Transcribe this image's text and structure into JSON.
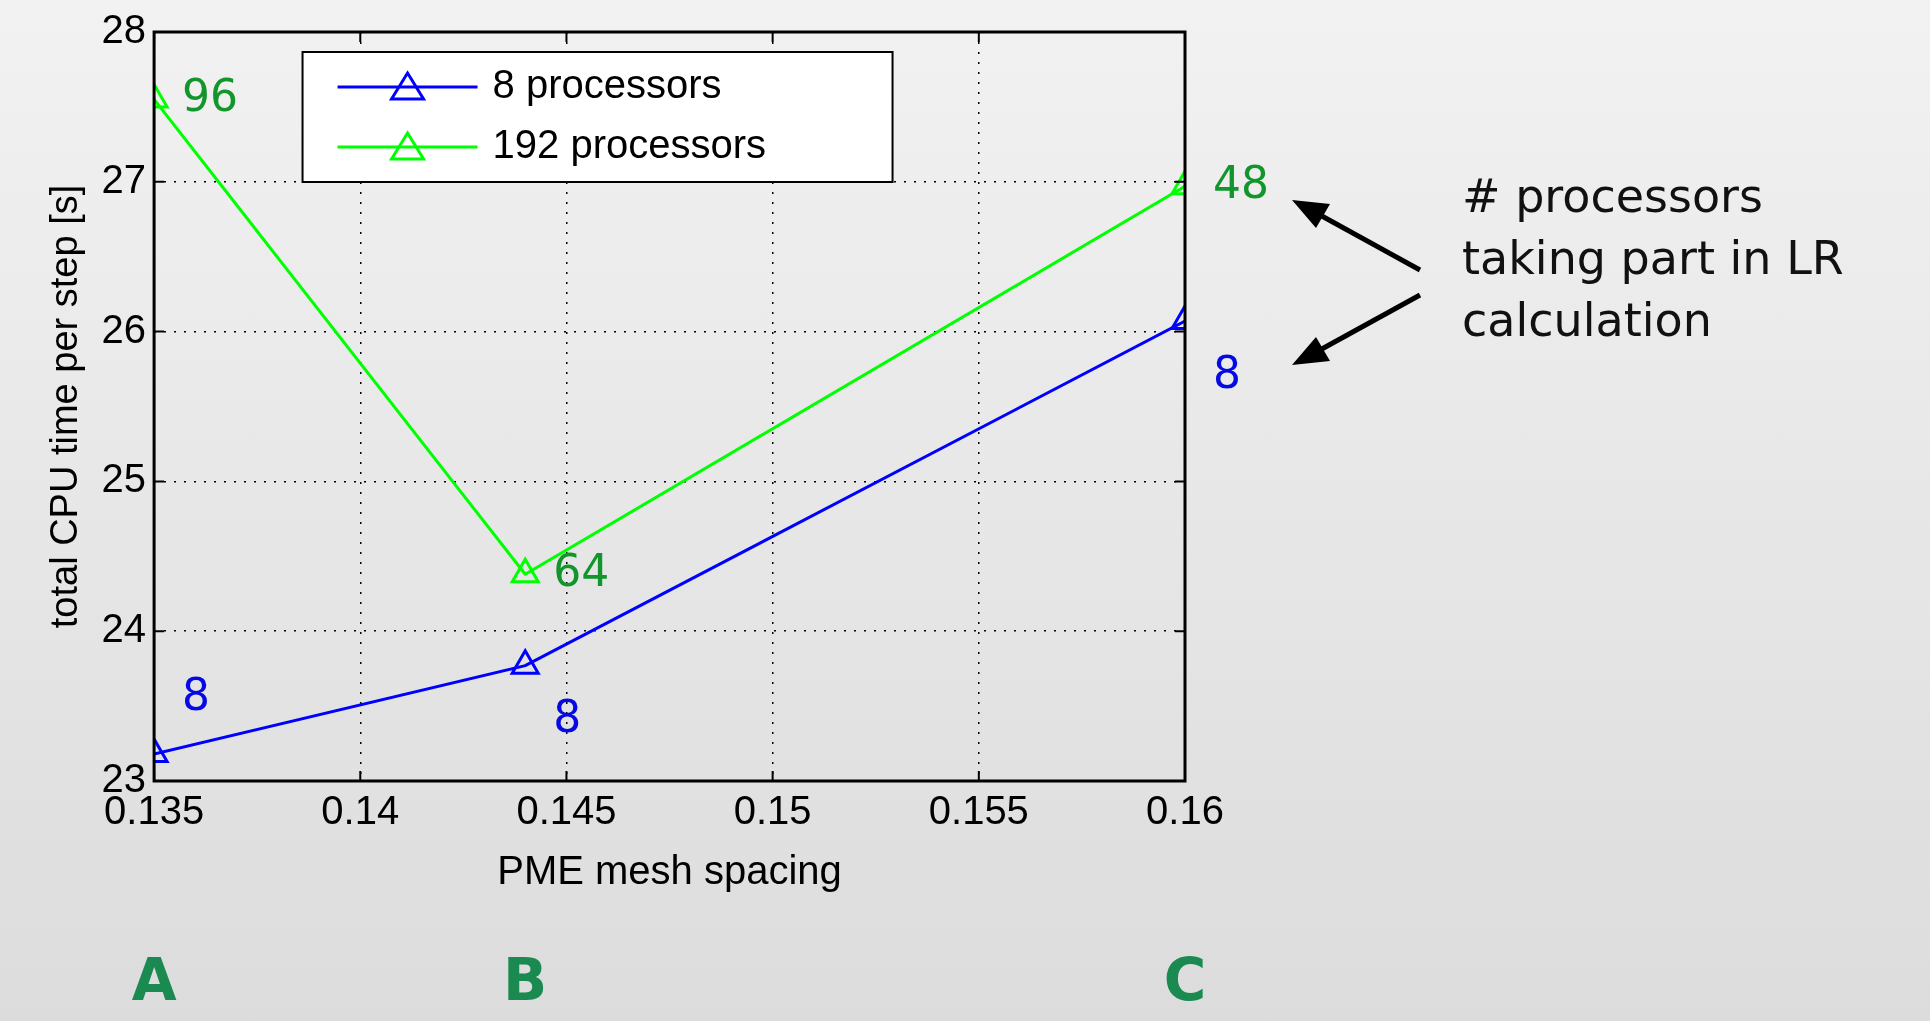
{
  "chart_data": {
    "type": "line",
    "xlabel": "PME mesh spacing",
    "ylabel": "total CPU time per step [s]",
    "x": [
      0.135,
      0.144,
      0.16
    ],
    "series": [
      {
        "name": "8 processors",
        "color": "#0000ff",
        "values": [
          23.18,
          23.77,
          26.07
        ]
      },
      {
        "name": "192 processors",
        "color": "#00ff00",
        "values": [
          27.55,
          24.38,
          26.97
        ]
      }
    ],
    "xlim": [
      0.135,
      0.16
    ],
    "xticks": [
      0.135,
      0.14,
      0.145,
      0.15,
      0.155,
      0.16
    ],
    "ylim": [
      23,
      28
    ],
    "yticks": [
      23,
      24,
      25,
      26,
      27,
      28
    ],
    "grid": true,
    "legend": "top",
    "marker": "triangle",
    "line_style": "solid",
    "annotations": [
      {
        "text": "96",
        "x": 0.135,
        "y": 27.55
      },
      {
        "text": "64",
        "x": 0.144,
        "y": 24.38
      },
      {
        "text": "48",
        "x": 0.16,
        "y": 26.97
      },
      {
        "text": "8",
        "x": 0.135,
        "y": 23.18
      },
      {
        "text": "8",
        "x": 0.144,
        "y": 23.77
      },
      {
        "text": "8",
        "x": 0.16,
        "y": 26.07
      },
      "A",
      "B",
      "C",
      "# processors taking part in LR calculation"
    ]
  }
}
